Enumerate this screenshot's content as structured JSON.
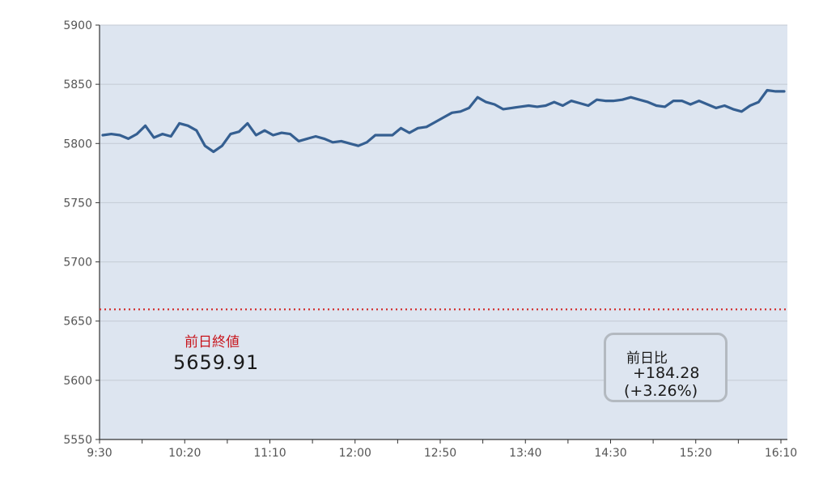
{
  "chart_data": {
    "type": "line",
    "x_tick_labels": [
      "9:30",
      "10:20",
      "11:10",
      "12:00",
      "12:50",
      "13:40",
      "14:30",
      "15:20",
      "16:10"
    ],
    "y_ticks": [
      5550,
      5600,
      5650,
      5700,
      5750,
      5800,
      5850,
      5900
    ],
    "ylim": [
      5550,
      5900
    ],
    "grid": true,
    "series": [
      {
        "color": "#355f91",
        "values": [
          5807,
          5808,
          5807,
          5804,
          5808,
          5815,
          5805,
          5808,
          5806,
          5817,
          5815,
          5811,
          5798,
          5793,
          5798,
          5808,
          5810,
          5817,
          5807,
          5811,
          5807,
          5809,
          5808,
          5802,
          5804,
          5806,
          5804,
          5801,
          5802,
          5800,
          5798,
          5801,
          5807,
          5807,
          5807,
          5813,
          5809,
          5813,
          5814,
          5818,
          5822,
          5826,
          5827,
          5830,
          5839,
          5835,
          5833,
          5829,
          5830,
          5831,
          5832,
          5831,
          5832,
          5835,
          5832,
          5836,
          5834,
          5832,
          5837,
          5836,
          5836,
          5837,
          5839,
          5837,
          5835,
          5832,
          5831,
          5836,
          5836,
          5833,
          5836,
          5833,
          5830,
          5832,
          5829,
          5827,
          5832,
          5835,
          5845,
          5844,
          5844
        ]
      }
    ],
    "reference_line": {
      "value": 5659.91,
      "color": "#d32f2f",
      "style": "dotted"
    },
    "annotations": {
      "prev_close_label": "前日終値",
      "prev_close_value": "5659.91",
      "change_label": "前日比",
      "change_amount": "+184.28",
      "change_percent": "(+3.26%)"
    },
    "colors": {
      "plot_background": "#dde5f0",
      "label_red": "#c8161d",
      "box_border": "#b3b9c0"
    }
  }
}
